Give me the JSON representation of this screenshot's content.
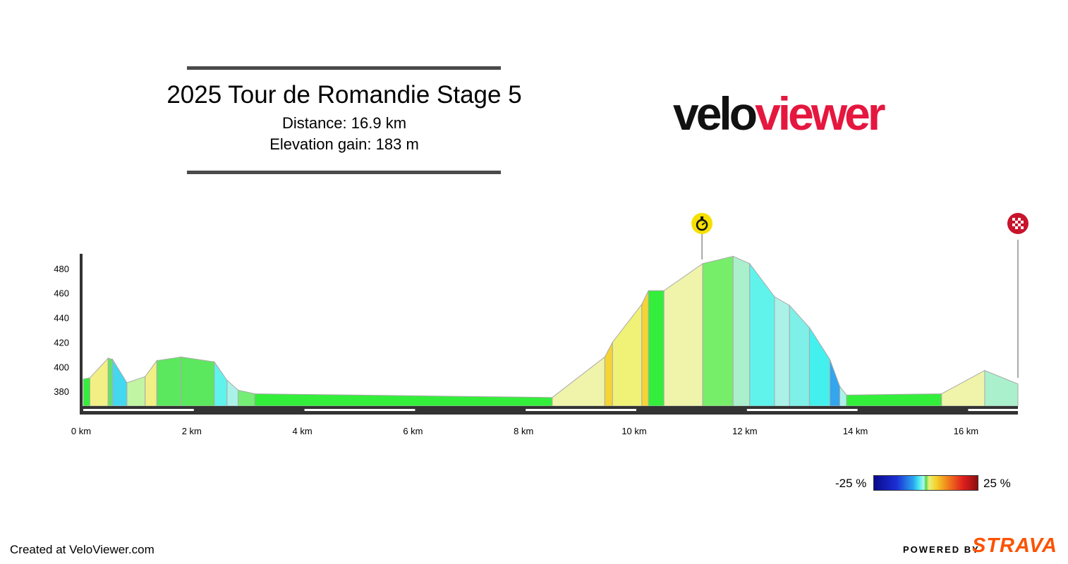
{
  "header": {
    "title": "2025 Tour de Romandie Stage 5",
    "distance_text": "Distance: 16.9 km",
    "elevation_text": "Elevation gain: 183 m"
  },
  "logo": {
    "part1": "velo",
    "part2": "viewer"
  },
  "legend": {
    "min_label": "-25 %",
    "max_label": "25 %"
  },
  "footer": {
    "created_text": "Created at VeloViewer.com",
    "powered_text": "POWERED BY",
    "strava_text": "STRAVA"
  },
  "colors": {
    "axis": "#333333",
    "outline": "#aaaaaa",
    "logo_dark": "#111111",
    "logo_red": "#e5173f",
    "strava": "#fc5200",
    "timer_badge": "#f5e000",
    "finish_badge": "#c8142c"
  },
  "markers": [
    {
      "icon": "stopwatch-icon",
      "km": 11.2
    },
    {
      "icon": "finish-flag-icon",
      "km": 16.9
    }
  ],
  "chart_data": {
    "type": "area",
    "xlabel": "",
    "ylabel": "",
    "xlim": [
      0,
      16.9
    ],
    "ylim": [
      368,
      492
    ],
    "x_ticks": [
      0,
      2,
      4,
      6,
      8,
      10,
      12,
      14,
      16
    ],
    "x_tick_labels": [
      "0 km",
      "2 km",
      "4 km",
      "6 km",
      "8 km",
      "10 km",
      "12 km",
      "14 km",
      "16 km"
    ],
    "y_ticks": [
      380,
      400,
      420,
      440,
      460,
      480
    ],
    "y_tick_labels": [
      "380",
      "400",
      "420",
      "440",
      "460",
      "480"
    ],
    "grid": false,
    "profile": [
      [
        0.0,
        390,
        391,
        "#33ee3a"
      ],
      [
        0.12,
        391,
        407,
        "#f2f085"
      ],
      [
        0.45,
        407,
        406,
        "#66e06a"
      ],
      [
        0.53,
        406,
        387,
        "#44d8f0"
      ],
      [
        0.79,
        387,
        392,
        "#c2f5a3"
      ],
      [
        1.12,
        392,
        405,
        "#f2f085"
      ],
      [
        1.33,
        405,
        408,
        "#5be85e"
      ],
      [
        1.77,
        408,
        404,
        "#5be85e"
      ],
      [
        2.37,
        404,
        389,
        "#60f3ec"
      ],
      [
        2.6,
        389,
        381,
        "#aaf2e8"
      ],
      [
        2.8,
        381,
        378,
        "#74ee74"
      ],
      [
        3.1,
        378,
        375,
        "#33ee3a"
      ],
      [
        8.48,
        375,
        408,
        "#eff4aa"
      ],
      [
        9.43,
        408,
        420,
        "#f5d434"
      ],
      [
        9.57,
        420,
        451,
        "#f0f278"
      ],
      [
        10.1,
        451,
        462,
        "#f5d434"
      ],
      [
        10.22,
        462,
        462,
        "#33ee3a"
      ],
      [
        10.5,
        462,
        484,
        "#eff4aa"
      ],
      [
        11.2,
        484,
        490,
        "#77ee6a"
      ],
      [
        11.75,
        490,
        484,
        "#aaf0cc"
      ],
      [
        12.05,
        484,
        457,
        "#60f3ec"
      ],
      [
        12.5,
        457,
        450,
        "#aaf2e8"
      ],
      [
        12.77,
        450,
        432,
        "#7ef0e8"
      ],
      [
        13.13,
        432,
        406,
        "#44f0ee"
      ],
      [
        13.5,
        406,
        384,
        "#34a6ee"
      ],
      [
        13.68,
        384,
        377,
        "#aaf2e8"
      ],
      [
        13.8,
        377,
        378,
        "#33ee3a"
      ],
      [
        15.52,
        378,
        397,
        "#eff4aa"
      ],
      [
        16.3,
        397,
        386,
        "#aaf0cc"
      ]
    ]
  }
}
